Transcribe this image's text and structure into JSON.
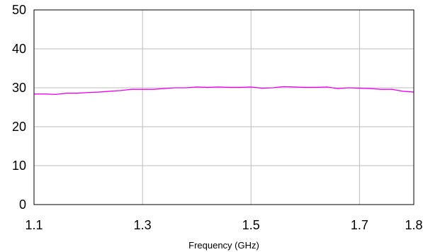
{
  "chart_data": {
    "type": "line",
    "xlabel": "Frequency (GHz)",
    "ylabel": "",
    "xlim": [
      1.1,
      1.8
    ],
    "ylim": [
      0,
      50
    ],
    "x_ticks": [
      {
        "value": 1.1,
        "label": "1.1"
      },
      {
        "value": 1.3,
        "label": "1.3"
      },
      {
        "value": 1.5,
        "label": "1.5"
      },
      {
        "value": 1.7,
        "label": "1.7"
      },
      {
        "value": 1.8,
        "label": "1.8"
      }
    ],
    "y_ticks": [
      {
        "value": 0,
        "label": "0"
      },
      {
        "value": 10,
        "label": "10"
      },
      {
        "value": 20,
        "label": "20"
      },
      {
        "value": 30,
        "label": "30"
      },
      {
        "value": 40,
        "label": "40"
      },
      {
        "value": 50,
        "label": "50"
      }
    ],
    "x_grid": [
      1.3,
      1.5,
      1.7
    ],
    "y_grid": [
      10,
      20,
      30,
      40
    ],
    "grid": true,
    "series": [
      {
        "color": "#ee00ee",
        "x": [
          1.1,
          1.12,
          1.14,
          1.16,
          1.18,
          1.2,
          1.22,
          1.24,
          1.26,
          1.28,
          1.3,
          1.32,
          1.34,
          1.36,
          1.38,
          1.4,
          1.42,
          1.44,
          1.46,
          1.48,
          1.5,
          1.52,
          1.54,
          1.56,
          1.58,
          1.6,
          1.62,
          1.64,
          1.66,
          1.68,
          1.7,
          1.72,
          1.74,
          1.76,
          1.78,
          1.8
        ],
        "y": [
          28.4,
          28.4,
          28.3,
          28.6,
          28.6,
          28.8,
          28.9,
          29.1,
          29.3,
          29.6,
          29.6,
          29.6,
          29.8,
          30.0,
          30.0,
          30.2,
          30.1,
          30.2,
          30.1,
          30.1,
          30.2,
          29.9,
          30.0,
          30.3,
          30.2,
          30.1,
          30.1,
          30.2,
          29.8,
          30.0,
          29.9,
          29.8,
          29.6,
          29.6,
          29.1,
          28.9
        ]
      }
    ]
  }
}
